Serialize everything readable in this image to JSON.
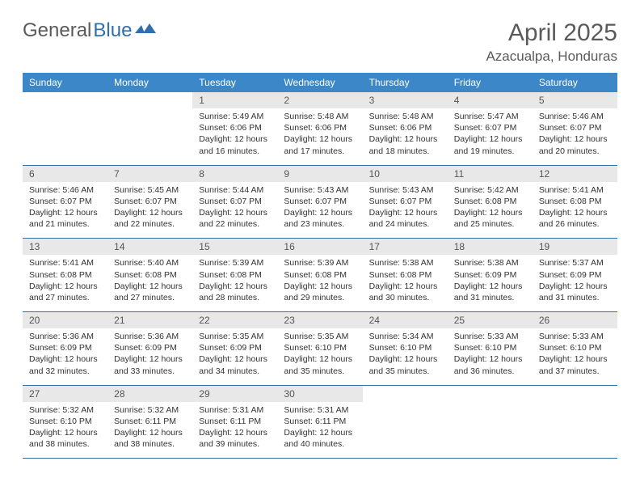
{
  "logo": {
    "text1": "General",
    "text2": "Blue"
  },
  "title": "April 2025",
  "location": "Azacualpa, Honduras",
  "colors": {
    "header_bg": "#3b87c8",
    "header_text": "#ffffff",
    "daynum_bg": "#e8e8e8",
    "rule": "#2f6fad",
    "body_text": "#333333",
    "title_text": "#5a5a5a"
  },
  "day_labels": [
    "Sunday",
    "Monday",
    "Tuesday",
    "Wednesday",
    "Thursday",
    "Friday",
    "Saturday"
  ],
  "weeks": [
    [
      {
        "n": "",
        "sr": "",
        "ss": "",
        "dl1": "",
        "dl2": ""
      },
      {
        "n": "",
        "sr": "",
        "ss": "",
        "dl1": "",
        "dl2": ""
      },
      {
        "n": "1",
        "sr": "Sunrise: 5:49 AM",
        "ss": "Sunset: 6:06 PM",
        "dl1": "Daylight: 12 hours",
        "dl2": "and 16 minutes."
      },
      {
        "n": "2",
        "sr": "Sunrise: 5:48 AM",
        "ss": "Sunset: 6:06 PM",
        "dl1": "Daylight: 12 hours",
        "dl2": "and 17 minutes."
      },
      {
        "n": "3",
        "sr": "Sunrise: 5:48 AM",
        "ss": "Sunset: 6:06 PM",
        "dl1": "Daylight: 12 hours",
        "dl2": "and 18 minutes."
      },
      {
        "n": "4",
        "sr": "Sunrise: 5:47 AM",
        "ss": "Sunset: 6:07 PM",
        "dl1": "Daylight: 12 hours",
        "dl2": "and 19 minutes."
      },
      {
        "n": "5",
        "sr": "Sunrise: 5:46 AM",
        "ss": "Sunset: 6:07 PM",
        "dl1": "Daylight: 12 hours",
        "dl2": "and 20 minutes."
      }
    ],
    [
      {
        "n": "6",
        "sr": "Sunrise: 5:46 AM",
        "ss": "Sunset: 6:07 PM",
        "dl1": "Daylight: 12 hours",
        "dl2": "and 21 minutes."
      },
      {
        "n": "7",
        "sr": "Sunrise: 5:45 AM",
        "ss": "Sunset: 6:07 PM",
        "dl1": "Daylight: 12 hours",
        "dl2": "and 22 minutes."
      },
      {
        "n": "8",
        "sr": "Sunrise: 5:44 AM",
        "ss": "Sunset: 6:07 PM",
        "dl1": "Daylight: 12 hours",
        "dl2": "and 22 minutes."
      },
      {
        "n": "9",
        "sr": "Sunrise: 5:43 AM",
        "ss": "Sunset: 6:07 PM",
        "dl1": "Daylight: 12 hours",
        "dl2": "and 23 minutes."
      },
      {
        "n": "10",
        "sr": "Sunrise: 5:43 AM",
        "ss": "Sunset: 6:07 PM",
        "dl1": "Daylight: 12 hours",
        "dl2": "and 24 minutes."
      },
      {
        "n": "11",
        "sr": "Sunrise: 5:42 AM",
        "ss": "Sunset: 6:08 PM",
        "dl1": "Daylight: 12 hours",
        "dl2": "and 25 minutes."
      },
      {
        "n": "12",
        "sr": "Sunrise: 5:41 AM",
        "ss": "Sunset: 6:08 PM",
        "dl1": "Daylight: 12 hours",
        "dl2": "and 26 minutes."
      }
    ],
    [
      {
        "n": "13",
        "sr": "Sunrise: 5:41 AM",
        "ss": "Sunset: 6:08 PM",
        "dl1": "Daylight: 12 hours",
        "dl2": "and 27 minutes."
      },
      {
        "n": "14",
        "sr": "Sunrise: 5:40 AM",
        "ss": "Sunset: 6:08 PM",
        "dl1": "Daylight: 12 hours",
        "dl2": "and 27 minutes."
      },
      {
        "n": "15",
        "sr": "Sunrise: 5:39 AM",
        "ss": "Sunset: 6:08 PM",
        "dl1": "Daylight: 12 hours",
        "dl2": "and 28 minutes."
      },
      {
        "n": "16",
        "sr": "Sunrise: 5:39 AM",
        "ss": "Sunset: 6:08 PM",
        "dl1": "Daylight: 12 hours",
        "dl2": "and 29 minutes."
      },
      {
        "n": "17",
        "sr": "Sunrise: 5:38 AM",
        "ss": "Sunset: 6:08 PM",
        "dl1": "Daylight: 12 hours",
        "dl2": "and 30 minutes."
      },
      {
        "n": "18",
        "sr": "Sunrise: 5:38 AM",
        "ss": "Sunset: 6:09 PM",
        "dl1": "Daylight: 12 hours",
        "dl2": "and 31 minutes."
      },
      {
        "n": "19",
        "sr": "Sunrise: 5:37 AM",
        "ss": "Sunset: 6:09 PM",
        "dl1": "Daylight: 12 hours",
        "dl2": "and 31 minutes."
      }
    ],
    [
      {
        "n": "20",
        "sr": "Sunrise: 5:36 AM",
        "ss": "Sunset: 6:09 PM",
        "dl1": "Daylight: 12 hours",
        "dl2": "and 32 minutes."
      },
      {
        "n": "21",
        "sr": "Sunrise: 5:36 AM",
        "ss": "Sunset: 6:09 PM",
        "dl1": "Daylight: 12 hours",
        "dl2": "and 33 minutes."
      },
      {
        "n": "22",
        "sr": "Sunrise: 5:35 AM",
        "ss": "Sunset: 6:09 PM",
        "dl1": "Daylight: 12 hours",
        "dl2": "and 34 minutes."
      },
      {
        "n": "23",
        "sr": "Sunrise: 5:35 AM",
        "ss": "Sunset: 6:10 PM",
        "dl1": "Daylight: 12 hours",
        "dl2": "and 35 minutes."
      },
      {
        "n": "24",
        "sr": "Sunrise: 5:34 AM",
        "ss": "Sunset: 6:10 PM",
        "dl1": "Daylight: 12 hours",
        "dl2": "and 35 minutes."
      },
      {
        "n": "25",
        "sr": "Sunrise: 5:33 AM",
        "ss": "Sunset: 6:10 PM",
        "dl1": "Daylight: 12 hours",
        "dl2": "and 36 minutes."
      },
      {
        "n": "26",
        "sr": "Sunrise: 5:33 AM",
        "ss": "Sunset: 6:10 PM",
        "dl1": "Daylight: 12 hours",
        "dl2": "and 37 minutes."
      }
    ],
    [
      {
        "n": "27",
        "sr": "Sunrise: 5:32 AM",
        "ss": "Sunset: 6:10 PM",
        "dl1": "Daylight: 12 hours",
        "dl2": "and 38 minutes."
      },
      {
        "n": "28",
        "sr": "Sunrise: 5:32 AM",
        "ss": "Sunset: 6:11 PM",
        "dl1": "Daylight: 12 hours",
        "dl2": "and 38 minutes."
      },
      {
        "n": "29",
        "sr": "Sunrise: 5:31 AM",
        "ss": "Sunset: 6:11 PM",
        "dl1": "Daylight: 12 hours",
        "dl2": "and 39 minutes."
      },
      {
        "n": "30",
        "sr": "Sunrise: 5:31 AM",
        "ss": "Sunset: 6:11 PM",
        "dl1": "Daylight: 12 hours",
        "dl2": "and 40 minutes."
      },
      {
        "n": "",
        "sr": "",
        "ss": "",
        "dl1": "",
        "dl2": ""
      },
      {
        "n": "",
        "sr": "",
        "ss": "",
        "dl1": "",
        "dl2": ""
      },
      {
        "n": "",
        "sr": "",
        "ss": "",
        "dl1": "",
        "dl2": ""
      }
    ]
  ]
}
